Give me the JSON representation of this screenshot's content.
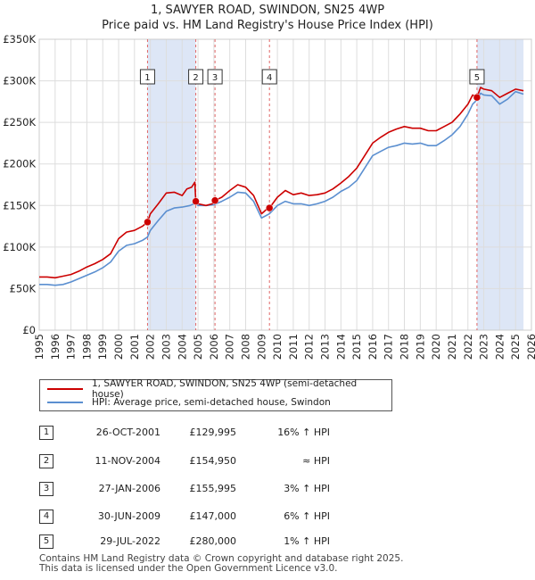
{
  "title": "1, SAWYER ROAD, SWINDON, SN25 4WP",
  "subtitle": "Price paid vs. HM Land Registry's House Price Index (HPI)",
  "legend": {
    "red_label": "1, SAWYER ROAD, SWINDON, SN25 4WP (semi-detached house)",
    "blue_label": "HPI: Average price, semi-detached house, Swindon"
  },
  "sales": [
    {
      "num": "1",
      "date": "26-OCT-2001",
      "price": "£129,995",
      "hpi": "16% ↑ HPI"
    },
    {
      "num": "2",
      "date": "11-NOV-2004",
      "price": "£154,950",
      "hpi": "≈ HPI"
    },
    {
      "num": "3",
      "date": "27-JAN-2006",
      "price": "£155,995",
      "hpi": "3% ↑ HPI"
    },
    {
      "num": "4",
      "date": "30-JUN-2009",
      "price": "£147,000",
      "hpi": "6% ↑ HPI"
    },
    {
      "num": "5",
      "date": "29-JUL-2022",
      "price": "£280,000",
      "hpi": "1% ↑ HPI"
    }
  ],
  "footer": {
    "line1": "Contains HM Land Registry data © Crown copyright and database right 2025.",
    "line2": "This data is licensed under the Open Government Licence v3.0."
  },
  "colors": {
    "red": "#cc0000",
    "blue": "#5b8fd0",
    "shade": "#dde6f6",
    "grid": "#dddddd"
  },
  "chart_data": {
    "type": "line",
    "title": "1, SAWYER ROAD, SWINDON, SN25 4WP",
    "subtitle": "Price paid vs. HM Land Registry's House Price Index (HPI)",
    "xlabel": "",
    "ylabel": "",
    "xlim": [
      1995,
      2026
    ],
    "ylim": [
      0,
      350000
    ],
    "y_ticks": [
      0,
      50000,
      100000,
      150000,
      200000,
      250000,
      300000,
      350000
    ],
    "y_tick_labels": [
      "£0",
      "£50K",
      "£100K",
      "£150K",
      "£200K",
      "£250K",
      "£300K",
      "£350K"
    ],
    "x_ticks": [
      1995,
      1996,
      1997,
      1998,
      1999,
      2000,
      2001,
      2002,
      2003,
      2004,
      2005,
      2006,
      2007,
      2008,
      2009,
      2010,
      2011,
      2012,
      2013,
      2014,
      2015,
      2016,
      2017,
      2018,
      2019,
      2020,
      2021,
      2022,
      2023,
      2024,
      2025,
      2026
    ],
    "grid": true,
    "legend_position": "bottom",
    "shaded_periods": [
      [
        2001.82,
        2004.86
      ],
      [
        2009.5,
        2009.5
      ],
      [
        2022.57,
        2025.5
      ]
    ],
    "sale_markers": [
      {
        "label": "1",
        "x": 2001.82,
        "y": 129995
      },
      {
        "label": "2",
        "x": 2004.86,
        "y": 154950
      },
      {
        "label": "3",
        "x": 2006.07,
        "y": 155995
      },
      {
        "label": "4",
        "x": 2009.5,
        "y": 147000
      },
      {
        "label": "5",
        "x": 2022.57,
        "y": 280000
      }
    ],
    "series": [
      {
        "name": "1, SAWYER ROAD, SWINDON, SN25 4WP (semi-detached house)",
        "color": "#cc0000",
        "x": [
          1995,
          1995.5,
          1996,
          1996.5,
          1997,
          1997.5,
          1998,
          1998.5,
          1999,
          1999.5,
          2000,
          2000.5,
          2001,
          2001.5,
          2001.82,
          2002,
          2002.5,
          2003,
          2003.5,
          2004,
          2004.3,
          2004.6,
          2004.8,
          2004.86,
          2005,
          2005.5,
          2005.9,
          2006.07,
          2006.5,
          2007,
          2007.5,
          2008,
          2008.5,
          2009,
          2009.3,
          2009.5,
          2010,
          2010.5,
          2011,
          2011.5,
          2012,
          2012.5,
          2013,
          2013.5,
          2014,
          2014.5,
          2015,
          2015.5,
          2016,
          2016.5,
          2017,
          2017.5,
          2018,
          2018.5,
          2019,
          2019.5,
          2020,
          2020.5,
          2021,
          2021.5,
          2022,
          2022.3,
          2022.57,
          2022.8,
          2023,
          2023.5,
          2024,
          2024.5,
          2025,
          2025.5
        ],
        "values": [
          64000,
          64000,
          63000,
          65000,
          67000,
          71000,
          76000,
          80000,
          85000,
          92000,
          110000,
          118000,
          120000,
          125000,
          129995,
          140000,
          152000,
          165000,
          166000,
          162000,
          170000,
          172000,
          178000,
          154950,
          152000,
          150000,
          152000,
          155995,
          160000,
          168000,
          175000,
          172000,
          162000,
          140000,
          145000,
          147000,
          160000,
          168000,
          163000,
          165000,
          162000,
          163000,
          165000,
          170000,
          177000,
          185000,
          195000,
          210000,
          225000,
          232000,
          238000,
          242000,
          245000,
          243000,
          243000,
          240000,
          240000,
          245000,
          250000,
          260000,
          272000,
          283000,
          280000,
          292000,
          290000,
          288000,
          280000,
          285000,
          290000,
          288000
        ]
      },
      {
        "name": "HPI: Average price, semi-detached house, Swindon",
        "color": "#5b8fd0",
        "x": [
          1995,
          1995.5,
          1996,
          1996.5,
          1997,
          1997.5,
          1998,
          1998.5,
          1999,
          1999.5,
          2000,
          2000.5,
          2001,
          2001.5,
          2001.82,
          2002,
          2002.5,
          2003,
          2003.5,
          2004,
          2004.5,
          2004.86,
          2005,
          2005.5,
          2006,
          2006.5,
          2007,
          2007.5,
          2008,
          2008.5,
          2009,
          2009.3,
          2009.5,
          2010,
          2010.5,
          2011,
          2011.5,
          2012,
          2012.5,
          2013,
          2013.5,
          2014,
          2014.5,
          2015,
          2015.5,
          2016,
          2016.5,
          2017,
          2017.5,
          2018,
          2018.5,
          2019,
          2019.5,
          2020,
          2020.5,
          2021,
          2021.5,
          2022,
          2022.3,
          2022.57,
          2022.8,
          2023,
          2023.5,
          2024,
          2024.5,
          2025,
          2025.5
        ],
        "values": [
          55000,
          55000,
          54000,
          55000,
          58000,
          62000,
          66000,
          70000,
          75000,
          82000,
          95000,
          102000,
          104000,
          108000,
          112000,
          120000,
          132000,
          143000,
          147000,
          148000,
          150000,
          153000,
          150000,
          150000,
          151000,
          155000,
          160000,
          166000,
          165000,
          155000,
          135000,
          138000,
          140000,
          150000,
          155000,
          152000,
          152000,
          150000,
          152000,
          155000,
          160000,
          167000,
          172000,
          180000,
          195000,
          210000,
          215000,
          220000,
          222000,
          225000,
          224000,
          225000,
          222000,
          222000,
          228000,
          235000,
          245000,
          260000,
          272000,
          277000,
          285000,
          283000,
          282000,
          272000,
          278000,
          287000,
          284000
        ]
      }
    ]
  }
}
